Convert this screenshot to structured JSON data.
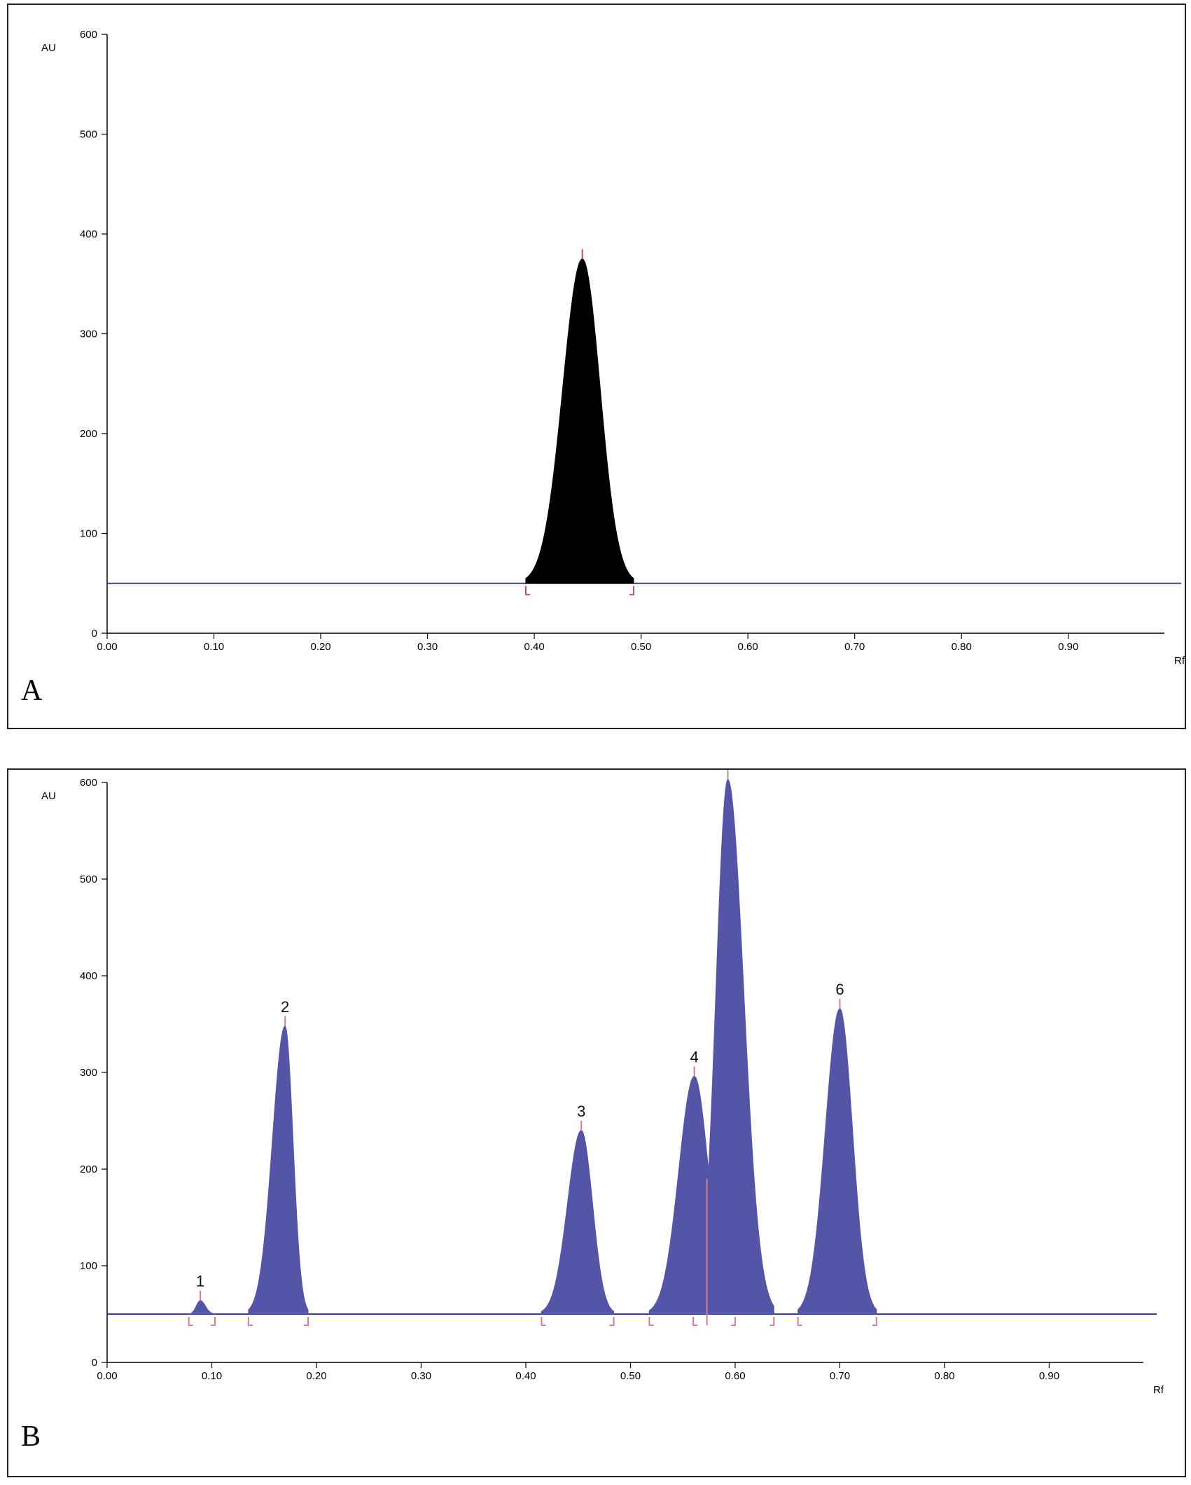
{
  "chart_data": [
    {
      "type": "area",
      "panel_label": "A",
      "ylabel": "AU",
      "xlabel": "Rf",
      "xlim": [
        0,
        0.99
      ],
      "ylim": [
        0,
        600
      ],
      "x_ticks": [
        "0.00",
        "0.10",
        "0.20",
        "0.30",
        "0.40",
        "0.50",
        "0.60",
        "0.70",
        "0.80",
        "0.90"
      ],
      "y_ticks": [
        "0",
        "100",
        "200",
        "300",
        "400",
        "500",
        "600"
      ],
      "baseline_au": 50,
      "fill_color": "#000000",
      "baseline_color": "#3b3b9e",
      "marker_color": "#c0506a",
      "peaks": [
        {
          "label": "",
          "rf": 0.445,
          "height_au": 375,
          "start_rf": 0.392,
          "end_rf": 0.493
        }
      ]
    },
    {
      "type": "area",
      "panel_label": "B",
      "ylabel": "AU",
      "xlabel": "Rf",
      "xlim": [
        0,
        0.99
      ],
      "ylim": [
        0,
        600
      ],
      "x_ticks": [
        "0.00",
        "0.10",
        "0.20",
        "0.30",
        "0.40",
        "0.50",
        "0.60",
        "0.70",
        "0.80",
        "0.90"
      ],
      "y_ticks": [
        "0",
        "100",
        "200",
        "300",
        "400",
        "500",
        "600"
      ],
      "baseline_au": 50,
      "fill_color": "#5555a8",
      "baseline_color": "#3b3b9e",
      "marker_color": "#d08090",
      "peaks": [
        {
          "label": "1",
          "rf": 0.089,
          "height_au": 64,
          "start_rf": 0.078,
          "end_rf": 0.103
        },
        {
          "label": "2",
          "rf": 0.17,
          "height_au": 348,
          "start_rf": 0.135,
          "end_rf": 0.192
        },
        {
          "label": "3",
          "rf": 0.453,
          "height_au": 240,
          "start_rf": 0.415,
          "end_rf": 0.484
        },
        {
          "label": "4",
          "rf": 0.561,
          "height_au": 296,
          "start_rf": 0.518,
          "end_rf": 0.6
        },
        {
          "label": "",
          "rf": 0.593,
          "height_au": 603,
          "start_rf": 0.56,
          "end_rf": 0.637
        },
        {
          "label": "6",
          "rf": 0.7,
          "height_au": 366,
          "start_rf": 0.66,
          "end_rf": 0.735
        }
      ]
    }
  ]
}
